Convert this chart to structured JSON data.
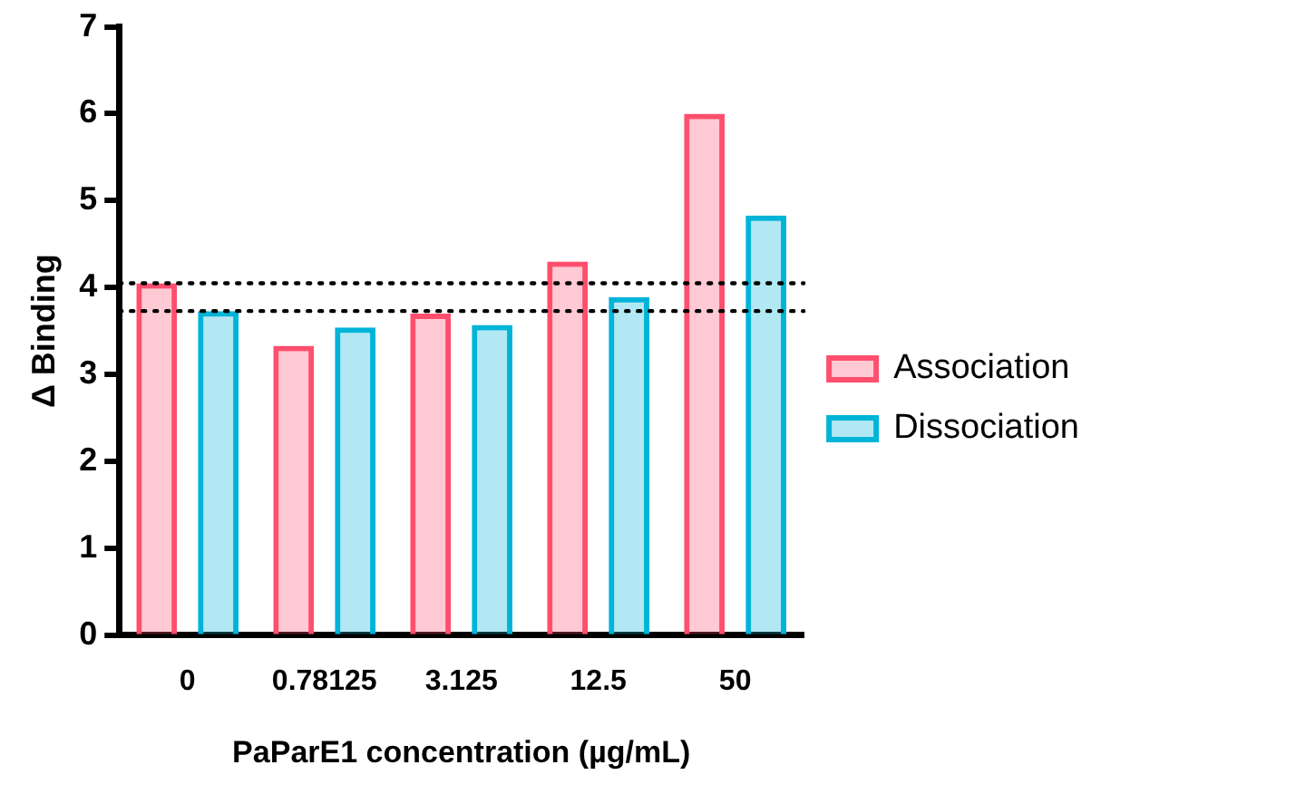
{
  "chart_data": {
    "type": "bar",
    "xlabel": "PaParE1 concentration (µg/mL)",
    "ylabel": "Δ Binding",
    "categories": [
      "0",
      "0.78125",
      "3.125",
      "12.5",
      "50"
    ],
    "series": [
      {
        "name": "Association",
        "color": "#ff4f6e",
        "values": [
          4.05,
          3.33,
          3.7,
          4.3,
          6.0
        ]
      },
      {
        "name": "Dissociation",
        "color": "#00b4d8",
        "values": [
          3.73,
          3.54,
          3.57,
          3.89,
          4.83
        ]
      }
    ],
    "ylim": [
      0,
      7
    ],
    "yticks": [
      0,
      1,
      2,
      3,
      4,
      5,
      6,
      7
    ],
    "grid": false,
    "legend": "right",
    "ref_lines": [
      {
        "axis": "y",
        "value": 4.05,
        "color": "#000000",
        "line_style": "dotted"
      },
      {
        "axis": "y",
        "value": 3.73,
        "color": "#000000",
        "line_style": "dotted"
      }
    ]
  }
}
